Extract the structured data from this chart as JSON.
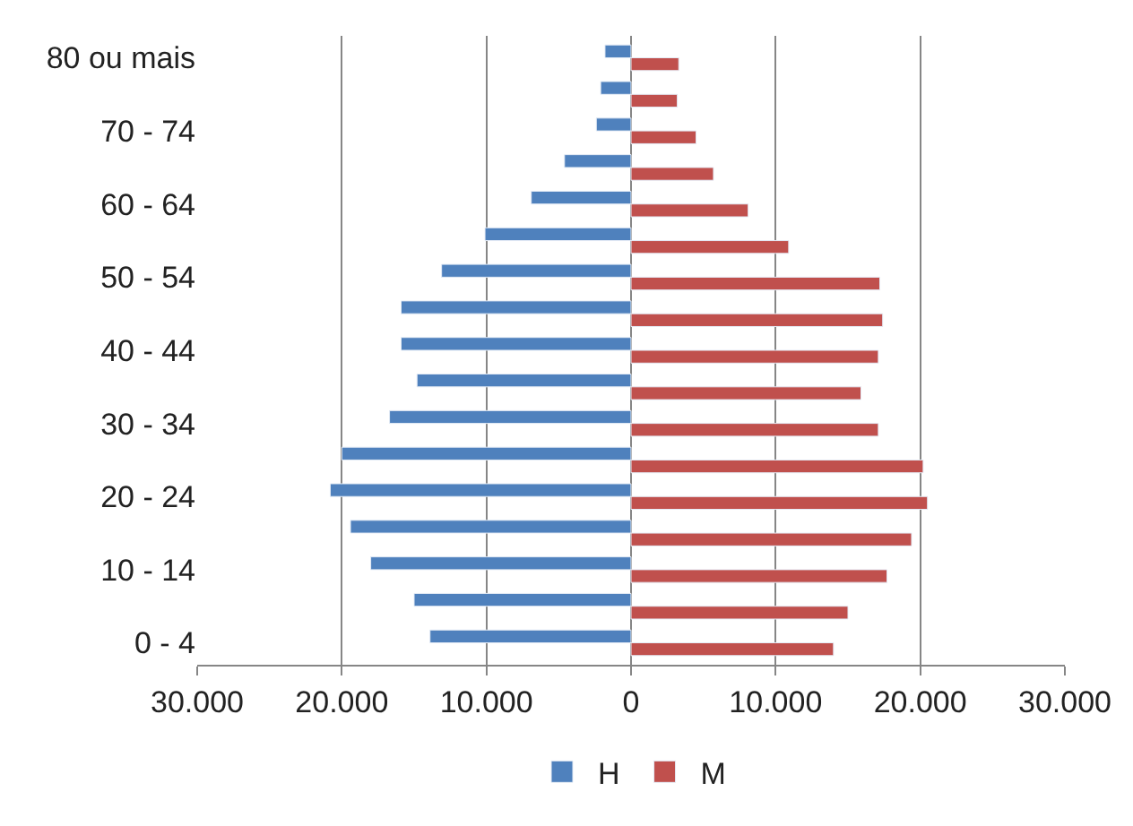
{
  "chart_data": {
    "type": "bar",
    "orientation": "horizontal",
    "categories": [
      "80 ou mais",
      null,
      "70 - 74",
      null,
      "60 - 64",
      null,
      "50 - 54",
      null,
      "40 - 44",
      null,
      "30 - 34",
      null,
      "20 - 24",
      null,
      "10 - 14",
      null,
      "0 - 4"
    ],
    "series": [
      {
        "name": "H",
        "color": "#4f81bd",
        "values": [
          -1800,
          -2100,
          -2400,
          -4600,
          -6900,
          -10100,
          -13100,
          -15900,
          -15900,
          -14800,
          -16700,
          -20000,
          -20800,
          -19400,
          -18000,
          -15000,
          -13900
        ]
      },
      {
        "name": "M",
        "color": "#c0504d",
        "values": [
          3300,
          3200,
          4500,
          5700,
          8100,
          10900,
          17200,
          17400,
          17100,
          15900,
          17100,
          20200,
          20500,
          19400,
          17700,
          15000,
          14000
        ]
      }
    ],
    "xlim": [
      -30000,
      30000
    ],
    "xticks": [
      {
        "value": -30000,
        "label": "30.000"
      },
      {
        "value": -20000,
        "label": "20.000"
      },
      {
        "value": -10000,
        "label": "10.000"
      },
      0,
      {
        "value": 10000,
        "label": "10.000"
      },
      {
        "value": 20000,
        "label": "20.000"
      },
      {
        "value": 30000,
        "label": "30.000"
      }
    ],
    "grid": "x",
    "legend": "bottom"
  }
}
